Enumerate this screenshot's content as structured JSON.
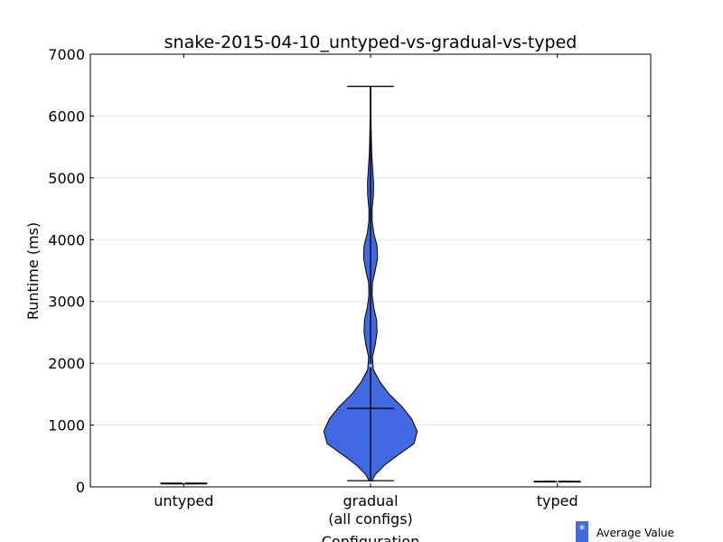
{
  "chart_data": {
    "type": "violin",
    "title": "snake-2015-04-10_untyped-vs-gradual-vs-typed",
    "xlabel": "Configuration",
    "ylabel": "Runtime (ms)",
    "ylim": [
      0,
      7000
    ],
    "yticks": [
      "0",
      "1000",
      "2000",
      "3000",
      "4000",
      "5000",
      "6000",
      "7000"
    ],
    "grid": "horizontal",
    "legend": {
      "placement": "bottom-right",
      "symbol": "*",
      "label": "Average Value",
      "color": "#4169e1"
    },
    "colors": {
      "fill": "#4169e1",
      "edge": "#000000",
      "mean_marker": "#ffffff"
    },
    "categories": [
      {
        "label_lines": [
          "untyped"
        ],
        "min": 50,
        "max": 60,
        "median": 55,
        "mean": 55,
        "density": [
          [
            50,
            0.2
          ],
          [
            55,
            0.5
          ],
          [
            60,
            0.2
          ]
        ]
      },
      {
        "label_lines": [
          "gradual",
          "(all configs)"
        ],
        "min": 100,
        "max": 6480,
        "median": 1270,
        "mean": 1950,
        "density": [
          [
            100,
            0.03
          ],
          [
            200,
            0.1
          ],
          [
            350,
            0.3
          ],
          [
            500,
            0.56
          ],
          [
            700,
            0.93
          ],
          [
            900,
            1.0
          ],
          [
            1100,
            0.88
          ],
          [
            1300,
            0.67
          ],
          [
            1500,
            0.4
          ],
          [
            1700,
            0.2
          ],
          [
            1900,
            0.06
          ],
          [
            2100,
            0.04
          ],
          [
            2300,
            0.1
          ],
          [
            2500,
            0.14
          ],
          [
            2700,
            0.13
          ],
          [
            2900,
            0.07
          ],
          [
            3100,
            0.035
          ],
          [
            3300,
            0.04
          ],
          [
            3500,
            0.1
          ],
          [
            3700,
            0.15
          ],
          [
            3900,
            0.14
          ],
          [
            4100,
            0.07
          ],
          [
            4300,
            0.035
          ],
          [
            4500,
            0.035
          ],
          [
            4700,
            0.06
          ],
          [
            4900,
            0.065
          ],
          [
            5100,
            0.05
          ],
          [
            5400,
            0.025
          ],
          [
            5700,
            0.015
          ],
          [
            6000,
            0.008
          ],
          [
            6480,
            0.005
          ]
        ]
      },
      {
        "label_lines": [
          "typed"
        ],
        "min": 80,
        "max": 90,
        "median": 85,
        "mean": 85,
        "density": [
          [
            80,
            0.2
          ],
          [
            85,
            0.5
          ],
          [
            90,
            0.2
          ]
        ]
      }
    ]
  }
}
